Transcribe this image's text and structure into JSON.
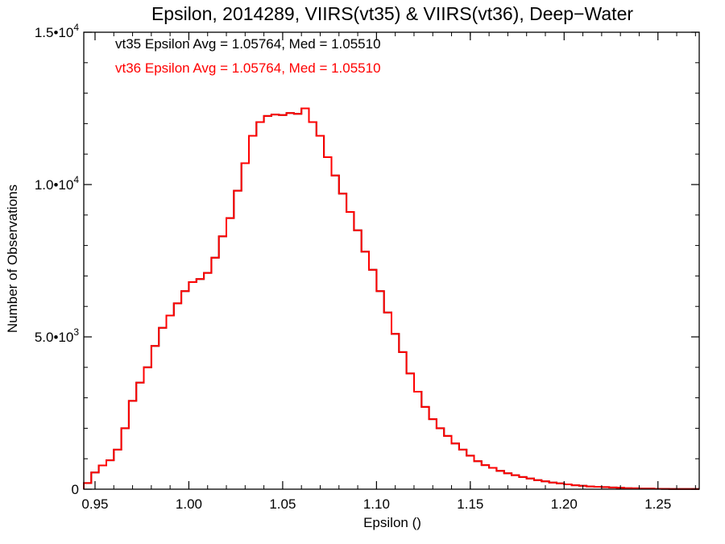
{
  "colors": {
    "vt35": "#000000",
    "vt36": "#ff0000",
    "axis": "#000000",
    "background": "#ffffff"
  },
  "chart_data": {
    "type": "line",
    "style": "histogram-step",
    "title": "Epsilon, 2014289, VIIRS(vt35) & VIIRS(vt36), Deep−Water",
    "xlabel": "Epsilon ()",
    "ylabel": "Number of Observations",
    "xlim": [
      0.944,
      1.272
    ],
    "ylim": [
      0,
      15000
    ],
    "grid": false,
    "x_ticks": [
      {
        "value": 0.95,
        "label": "0.95"
      },
      {
        "value": 1.0,
        "label": "1.00"
      },
      {
        "value": 1.05,
        "label": "1.05"
      },
      {
        "value": 1.1,
        "label": "1.10"
      },
      {
        "value": 1.15,
        "label": "1.15"
      },
      {
        "value": 1.2,
        "label": "1.20"
      },
      {
        "value": 1.25,
        "label": "1.25"
      }
    ],
    "y_ticks": [
      {
        "value": 0,
        "mantissa": "0",
        "exponent": ""
      },
      {
        "value": 5000,
        "mantissa": "5.0•10",
        "exponent": "3"
      },
      {
        "value": 10000,
        "mantissa": "1.0•10",
        "exponent": "4"
      },
      {
        "value": 15000,
        "mantissa": "1.5•10",
        "exponent": "4"
      }
    ],
    "annotations": [
      {
        "id": "vt35",
        "text": "vt35 Epsilon Avg = 1.05764, Med = 1.05510",
        "color": "#000000"
      },
      {
        "id": "vt36",
        "text": "vt36 Epsilon Avg = 1.05764, Med = 1.05510",
        "color": "#ff0000"
      }
    ],
    "series": [
      {
        "id": "vt35",
        "color": "#000000",
        "x": [
          0.944,
          0.948,
          0.952,
          0.956,
          0.96,
          0.964,
          0.968,
          0.972,
          0.976,
          0.98,
          0.984,
          0.988,
          0.992,
          0.996,
          1.0,
          1.004,
          1.008,
          1.012,
          1.016,
          1.02,
          1.024,
          1.028,
          1.032,
          1.036,
          1.04,
          1.044,
          1.048,
          1.052,
          1.056,
          1.06,
          1.064,
          1.068,
          1.072,
          1.076,
          1.08,
          1.084,
          1.088,
          1.092,
          1.096,
          1.1,
          1.104,
          1.108,
          1.112,
          1.116,
          1.12,
          1.124,
          1.128,
          1.132,
          1.136,
          1.14,
          1.144,
          1.148,
          1.152,
          1.156,
          1.16,
          1.164,
          1.168,
          1.172,
          1.176,
          1.18,
          1.184,
          1.188,
          1.192,
          1.196,
          1.2,
          1.204,
          1.208,
          1.212,
          1.216,
          1.22,
          1.224,
          1.228,
          1.232,
          1.236,
          1.24,
          1.244,
          1.248,
          1.252,
          1.256,
          1.26,
          1.264,
          1.268
        ],
        "values": [
          200,
          550,
          780,
          950,
          1300,
          2000,
          2900,
          3500,
          4000,
          4700,
          5300,
          5700,
          6100,
          6500,
          6800,
          6900,
          7100,
          7600,
          8300,
          8900,
          9800,
          10700,
          11600,
          12050,
          12250,
          12300,
          12280,
          12350,
          12320,
          12500,
          12050,
          11600,
          10900,
          10300,
          9700,
          9100,
          8500,
          7800,
          7200,
          6500,
          5800,
          5100,
          4500,
          3800,
          3200,
          2700,
          2300,
          2000,
          1750,
          1500,
          1300,
          1100,
          920,
          790,
          700,
          600,
          520,
          460,
          400,
          350,
          300,
          260,
          220,
          190,
          160,
          130,
          110,
          90,
          80,
          70,
          55,
          45,
          35,
          28,
          22,
          18,
          14,
          10,
          8,
          6,
          5,
          4
        ]
      },
      {
        "id": "vt36",
        "color": "#ff0000",
        "x": [
          0.944,
          0.948,
          0.952,
          0.956,
          0.96,
          0.964,
          0.968,
          0.972,
          0.976,
          0.98,
          0.984,
          0.988,
          0.992,
          0.996,
          1.0,
          1.004,
          1.008,
          1.012,
          1.016,
          1.02,
          1.024,
          1.028,
          1.032,
          1.036,
          1.04,
          1.044,
          1.048,
          1.052,
          1.056,
          1.06,
          1.064,
          1.068,
          1.072,
          1.076,
          1.08,
          1.084,
          1.088,
          1.092,
          1.096,
          1.1,
          1.104,
          1.108,
          1.112,
          1.116,
          1.12,
          1.124,
          1.128,
          1.132,
          1.136,
          1.14,
          1.144,
          1.148,
          1.152,
          1.156,
          1.16,
          1.164,
          1.168,
          1.172,
          1.176,
          1.18,
          1.184,
          1.188,
          1.192,
          1.196,
          1.2,
          1.204,
          1.208,
          1.212,
          1.216,
          1.22,
          1.224,
          1.228,
          1.232,
          1.236,
          1.24,
          1.244,
          1.248,
          1.252,
          1.256,
          1.26,
          1.264,
          1.268
        ],
        "values": [
          200,
          550,
          780,
          950,
          1300,
          2000,
          2900,
          3500,
          4000,
          4700,
          5300,
          5700,
          6100,
          6500,
          6800,
          6900,
          7100,
          7600,
          8300,
          8900,
          9800,
          10700,
          11600,
          12050,
          12250,
          12300,
          12280,
          12350,
          12320,
          12500,
          12050,
          11600,
          10900,
          10300,
          9700,
          9100,
          8500,
          7800,
          7200,
          6500,
          5800,
          5100,
          4500,
          3800,
          3200,
          2700,
          2300,
          2000,
          1750,
          1500,
          1300,
          1100,
          920,
          790,
          700,
          600,
          520,
          460,
          400,
          350,
          300,
          260,
          220,
          190,
          160,
          130,
          110,
          90,
          80,
          70,
          55,
          45,
          35,
          28,
          22,
          18,
          14,
          10,
          8,
          6,
          5,
          4
        ]
      }
    ]
  }
}
